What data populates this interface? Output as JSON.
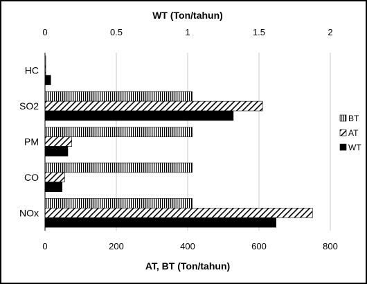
{
  "chart_data": {
    "type": "bar",
    "orientation": "horizontal",
    "categories": [
      "HC",
      "SO2",
      "PM",
      "CO",
      "NOx"
    ],
    "series": [
      {
        "name": "BT",
        "axis": "bottom",
        "pattern": "vertical-stripes",
        "values": [
          2,
          413,
          413,
          413,
          413
        ]
      },
      {
        "name": "AT",
        "axis": "bottom",
        "pattern": "diagonal-stripes",
        "values": [
          2,
          610,
          75,
          55,
          750
        ]
      },
      {
        "name": "WT",
        "axis": "top",
        "pattern": "solid",
        "values": [
          0.04,
          1.32,
          0.16,
          0.12,
          1.62
        ]
      }
    ],
    "top_axis": {
      "label": "WT (Ton/tahun)",
      "range": [
        0,
        2
      ],
      "ticks": [
        "0",
        "0.5",
        "1",
        "1.5",
        "2"
      ]
    },
    "bottom_axis": {
      "label": "AT, BT (Ton/tahun)",
      "range": [
        0,
        800
      ],
      "ticks": [
        "0",
        "200",
        "400",
        "600",
        "800"
      ]
    },
    "grid": "vertical",
    "legend_position": "right",
    "bar_color": "#000000"
  }
}
